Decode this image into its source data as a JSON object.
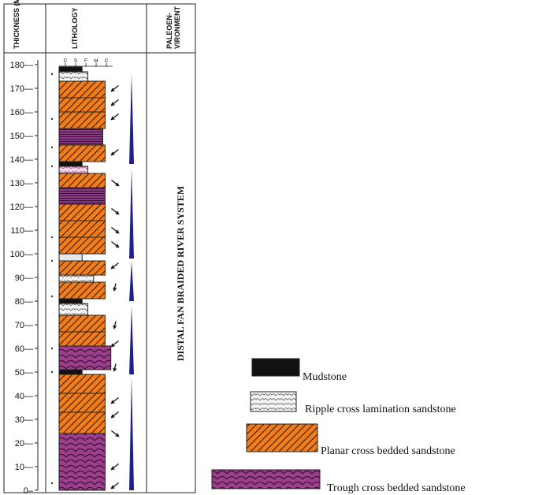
{
  "headers": {
    "thickness": "THICKNESS (M)",
    "lithology": "LITHOLOGY",
    "paleo_line1": "PALEOEN-",
    "paleo_line2": "VIRONMENT"
  },
  "grain_sizes": [
    "C",
    "S",
    "F",
    "M",
    "C"
  ],
  "environment": "DISTAL FAN BRAIDED RIVER SYSTEM",
  "axis": {
    "ticks": [
      0,
      10,
      20,
      30,
      40,
      50,
      60,
      70,
      80,
      90,
      100,
      110,
      120,
      130,
      140,
      150,
      160,
      170,
      180
    ]
  },
  "layers": [
    {
      "type": "trough",
      "bottom": 0,
      "top": 24,
      "width": 4
    },
    {
      "type": "planar",
      "bottom": 24,
      "top": 33,
      "width": 4
    },
    {
      "type": "planar",
      "bottom": 33,
      "top": 41,
      "width": 4
    },
    {
      "type": "planar",
      "bottom": 41,
      "top": 49,
      "width": 4
    },
    {
      "type": "mud",
      "bottom": 49,
      "top": 51,
      "width": 2
    },
    {
      "type": "trough",
      "bottom": 51,
      "top": 61,
      "width": 4.5
    },
    {
      "type": "planar",
      "bottom": 61,
      "top": 67,
      "width": 4
    },
    {
      "type": "planar",
      "bottom": 67,
      "top": 74,
      "width": 4
    },
    {
      "type": "ripple",
      "bottom": 74,
      "top": 79,
      "width": 2.5
    },
    {
      "type": "mud",
      "bottom": 79,
      "top": 81,
      "width": 2
    },
    {
      "type": "planar",
      "bottom": 81,
      "top": 88,
      "width": 4
    },
    {
      "type": "ripple",
      "bottom": 88,
      "top": 91,
      "width": 3
    },
    {
      "type": "planar",
      "bottom": 91,
      "top": 97,
      "width": 4
    },
    {
      "type": "silt",
      "bottom": 97,
      "top": 100,
      "width": 2
    },
    {
      "type": "planar",
      "bottom": 100,
      "top": 107,
      "width": 4
    },
    {
      "type": "planar",
      "bottom": 107,
      "top": 114,
      "width": 4
    },
    {
      "type": "planar",
      "bottom": 114,
      "top": 121,
      "width": 4
    },
    {
      "type": "trough_purple",
      "bottom": 121,
      "top": 128,
      "width": 4
    },
    {
      "type": "planar",
      "bottom": 128,
      "top": 134,
      "width": 4
    },
    {
      "type": "ripple_pink",
      "bottom": 134,
      "top": 137,
      "width": 2.5
    },
    {
      "type": "mud",
      "bottom": 137,
      "top": 139,
      "width": 2
    },
    {
      "type": "planar",
      "bottom": 139,
      "top": 146,
      "width": 4
    },
    {
      "type": "trough_purple",
      "bottom": 146,
      "top": 153,
      "width": 3.8
    },
    {
      "type": "planar",
      "bottom": 153,
      "top": 160,
      "width": 4
    },
    {
      "type": "planar",
      "bottom": 160,
      "top": 166,
      "width": 4
    },
    {
      "type": "planar",
      "bottom": 166,
      "top": 173,
      "width": 4
    },
    {
      "type": "ripple",
      "bottom": 173,
      "top": 177,
      "width": 2.5
    },
    {
      "type": "mud",
      "bottom": 177,
      "top": 179,
      "width": 2
    }
  ],
  "arrows": [
    {
      "at": 2,
      "dir": "sw"
    },
    {
      "at": 10,
      "dir": "sw"
    },
    {
      "at": 24,
      "dir": "se"
    },
    {
      "at": 32,
      "dir": "sw"
    },
    {
      "at": 38,
      "dir": "sw"
    },
    {
      "at": 52,
      "dir": "s"
    },
    {
      "at": 62,
      "dir": "sw"
    },
    {
      "at": 70,
      "dir": "s"
    },
    {
      "at": 86,
      "dir": "s"
    },
    {
      "at": 95,
      "dir": "sw"
    },
    {
      "at": 104,
      "dir": "se"
    },
    {
      "at": 110,
      "dir": "se"
    },
    {
      "at": 118,
      "dir": "se"
    },
    {
      "at": 130,
      "dir": "se"
    },
    {
      "at": 143,
      "dir": "sw"
    },
    {
      "at": 158,
      "dir": "sw"
    },
    {
      "at": 164,
      "dir": "sw"
    },
    {
      "at": 170,
      "dir": "sw"
    }
  ],
  "wedges": [
    {
      "from": 0,
      "to": 48
    },
    {
      "from": 49,
      "to": 78
    },
    {
      "from": 80,
      "to": 97
    },
    {
      "from": 98,
      "to": 136
    },
    {
      "from": 138,
      "to": 176
    }
  ],
  "dots": [
    3,
    50,
    60,
    82,
    97,
    107,
    137,
    145,
    157,
    176
  ],
  "legend": [
    {
      "type": "mud",
      "label": "Mudstone"
    },
    {
      "type": "ripple",
      "label": "Ripple cross lamination sandstone"
    },
    {
      "type": "planar",
      "label": "Planar cross bedded sandstone"
    },
    {
      "type": "trough",
      "label": "Trough cross bedded sandstone"
    }
  ],
  "colors": {
    "planar": "#f07d1a",
    "trough": "#9b3f8c",
    "mud": "#111111",
    "wedge": "#1f1f8f"
  }
}
